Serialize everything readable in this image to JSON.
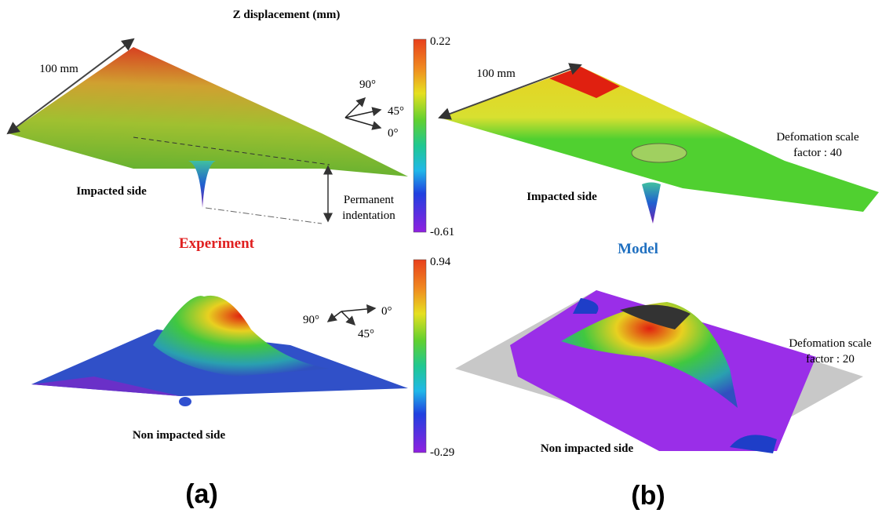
{
  "title": "Z displacement (mm)",
  "colorbars": [
    {
      "max": 0.22,
      "min": -0.61
    },
    {
      "max": 0.94,
      "min": -0.29
    }
  ],
  "panel_a": {
    "label": "(a)",
    "caption": "Experiment",
    "scale": "100 mm",
    "top_side": "Impacted side",
    "bottom_side": "Non impacted side",
    "indentation": [
      "Permanent",
      "indentation"
    ],
    "angles_top": [
      "90°",
      "45°",
      "0°"
    ],
    "angles_bottom": [
      "90°",
      "45°",
      "0°"
    ]
  },
  "panel_b": {
    "label": "(b)",
    "caption": "Model",
    "scale": "100 mm",
    "top_side": "Impacted side",
    "bottom_side": "Non impacted side",
    "scale_factor_top": [
      "Defomation scale",
      "factor : 40"
    ],
    "scale_factor_bottom": [
      "Defomation scale",
      "factor : 20"
    ]
  }
}
